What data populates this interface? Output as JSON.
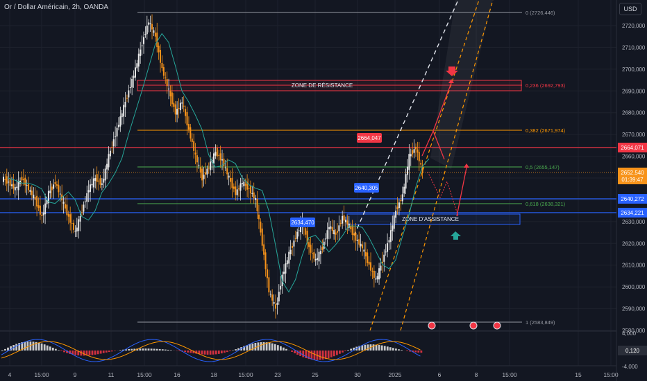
{
  "header": {
    "title": "Or / Dollar Américain, 2h, OANDA",
    "currency_button": "USD"
  },
  "colors": {
    "background": "#131722",
    "candle_bull": "#e8e8e8",
    "candle_bear": "#f7931a",
    "ma_line": "#26a69a",
    "resistance": "#f23645",
    "support": "#2962ff",
    "fib_orange": "#ff9800",
    "fib_green": "#4caf50",
    "fib_gray": "#9598a1",
    "macd_up": "#e8e8e8",
    "macd_down": "#f23645"
  },
  "price_axis": {
    "ticks": [
      "2720,000",
      "2710,000",
      "2700,000",
      "2690,000",
      "2680,000",
      "2670,000",
      "2660,000",
      "2650,000",
      "2640,000",
      "2630,000",
      "2620,000",
      "2610,000",
      "2600,000",
      "2590,000",
      "2580,000"
    ],
    "indicator_ticks": [
      "4,000",
      "-4,000"
    ],
    "labels": [
      {
        "text": "2664,071",
        "color": "#f23645"
      },
      {
        "text": "2652,540",
        "color": "#f7931a"
      },
      {
        "text": "01:39:47",
        "color": "#f7931a"
      },
      {
        "text": "2640,272",
        "color": "#2962ff"
      },
      {
        "text": "2634,221",
        "color": "#2962ff"
      },
      {
        "text": "0,120",
        "color": "#2a2e39"
      }
    ]
  },
  "time_axis": [
    "4",
    "15:00",
    "9",
    "11",
    "15:00",
    "16",
    "18",
    "15:00",
    "23",
    "25",
    "30",
    "2025",
    "6",
    "8",
    "15:00",
    "15",
    "15:00"
  ],
  "fibonacci": [
    {
      "label": "0 (2726,446)",
      "color": "#9598a1"
    },
    {
      "label": "0,236 (2692,793)",
      "color": "#f23645"
    },
    {
      "label": "0,382 (2671,974)",
      "color": "#ff9800"
    },
    {
      "label": "0,5 (2655,147)",
      "color": "#4caf50"
    },
    {
      "label": "0,618 (2638,321)",
      "color": "#4caf50"
    },
    {
      "label": "1 (2583,849)",
      "color": "#9598a1"
    }
  ],
  "zones": {
    "resistance": "ZONE DE RÉSISTANCE",
    "support": "ZONE D'ASSISTANCE"
  },
  "price_tags": [
    "2664,047",
    "2640,305",
    "2634,470"
  ],
  "chart_data": {
    "type": "candlestick",
    "symbol": "XAUUSD",
    "timeframe": "2h",
    "ylim": [
      2578,
      2732
    ],
    "levels": {
      "resistance": 2664.071,
      "last": 2652.54,
      "support_top": 2640.272,
      "support_bottom": 2634.221
    },
    "fib": [
      2726.446,
      2692.793,
      2671.974,
      2655.147,
      2638.321,
      2583.849
    ],
    "close_path": [
      2650,
      2648,
      2645,
      2650,
      2645,
      2640,
      2632,
      2643,
      2648,
      2640,
      2632,
      2625,
      2635,
      2645,
      2650,
      2647,
      2660,
      2670,
      2680,
      2690,
      2700,
      2712,
      2722,
      2715,
      2700,
      2690,
      2680,
      2685,
      2672,
      2660,
      2650,
      2655,
      2662,
      2658,
      2650,
      2643,
      2648,
      2645,
      2640,
      2620,
      2598,
      2590,
      2605,
      2615,
      2623,
      2630,
      2618,
      2612,
      2618,
      2628,
      2624,
      2632,
      2628,
      2622,
      2618,
      2610,
      2603,
      2612,
      2622,
      2635,
      2642,
      2660,
      2664,
      2652.5
    ]
  }
}
